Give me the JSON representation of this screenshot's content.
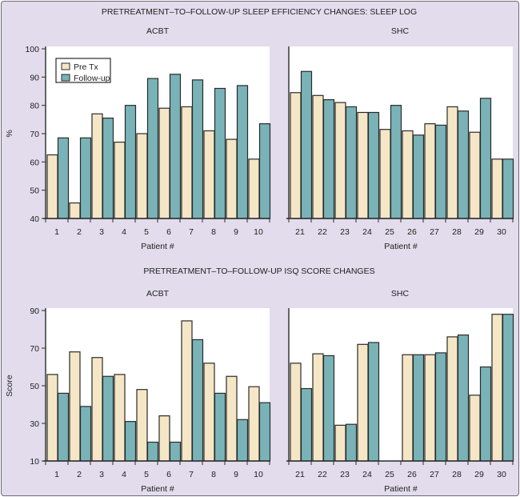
{
  "chart_data": [
    {
      "type": "bar",
      "section_title": "PRETREATMENT–TO–FOLLOW-UP SLEEP EFFICIENCY CHANGES: SLEEP LOG",
      "title": "ACBT",
      "xlabel": "Patient #",
      "ylabel": "%",
      "ylim": [
        40,
        100
      ],
      "yticks": [
        "40",
        "50",
        "60",
        "70",
        "80",
        "90",
        "100"
      ],
      "categories": [
        "1",
        "2",
        "3",
        "4",
        "5",
        "6",
        "7",
        "8",
        "9",
        "10"
      ],
      "legend": {
        "placement": "top-left",
        "entries": [
          "Pre Tx",
          "Follow-up"
        ]
      },
      "series": [
        {
          "name": "Pre Tx",
          "color": "#f5e6c6",
          "values": [
            62.5,
            45.5,
            77,
            67,
            70,
            79,
            79.5,
            71,
            68,
            61
          ]
        },
        {
          "name": "Follow-up",
          "color": "#79b3b8",
          "values": [
            68.5,
            68.5,
            75.5,
            80,
            89.5,
            91,
            89,
            86,
            87,
            73.5
          ]
        }
      ]
    },
    {
      "type": "bar",
      "title": "SHC",
      "xlabel": "Patient #",
      "ylabel": "",
      "ylim": [
        40,
        100
      ],
      "categories": [
        "21",
        "22",
        "23",
        "24",
        "25",
        "26",
        "27",
        "28",
        "29",
        "30"
      ],
      "series": [
        {
          "name": "Pre Tx",
          "color": "#f5e6c6",
          "values": [
            84.5,
            83.5,
            81,
            77.5,
            71.5,
            71,
            73.5,
            79.5,
            70.5,
            61
          ]
        },
        {
          "name": "Follow-up",
          "color": "#79b3b8",
          "values": [
            92,
            82,
            79.5,
            77.5,
            80,
            69.5,
            73,
            78,
            82.5,
            61
          ]
        }
      ]
    },
    {
      "type": "bar",
      "section_title": "PRETREATMENT–TO–FOLLOW-UP ISQ SCORE CHANGES",
      "title": "ACBT",
      "xlabel": "Patient #",
      "ylabel": "Score",
      "ylim": [
        10,
        90
      ],
      "yticks": [
        "10",
        "30",
        "50",
        "70",
        "90"
      ],
      "categories": [
        "1",
        "2",
        "3",
        "4",
        "5",
        "6",
        "7",
        "8",
        "9",
        "10"
      ],
      "series": [
        {
          "name": "Pre Tx",
          "color": "#f5e6c6",
          "values": [
            56,
            68,
            65,
            56,
            48,
            34,
            84.5,
            62,
            55,
            49.5
          ]
        },
        {
          "name": "Follow-up",
          "color": "#79b3b8",
          "values": [
            46,
            39,
            55,
            31,
            20,
            20,
            74.5,
            46,
            32,
            41
          ]
        }
      ]
    },
    {
      "type": "bar",
      "title": "SHC",
      "xlabel": "Patient #",
      "ylabel": "",
      "ylim": [
        10,
        90
      ],
      "categories": [
        "21",
        "22",
        "23",
        "24",
        "25",
        "26",
        "27",
        "28",
        "29",
        "30"
      ],
      "series": [
        {
          "name": "Pre Tx",
          "color": "#f5e6c6",
          "values": [
            62,
            67,
            29,
            72,
            10,
            66.5,
            66.5,
            76,
            45,
            88
          ]
        },
        {
          "name": "Follow-up",
          "color": "#79b3b8",
          "values": [
            48.5,
            66,
            29.5,
            73,
            10,
            66.5,
            67.5,
            77,
            60,
            88
          ]
        }
      ]
    }
  ]
}
